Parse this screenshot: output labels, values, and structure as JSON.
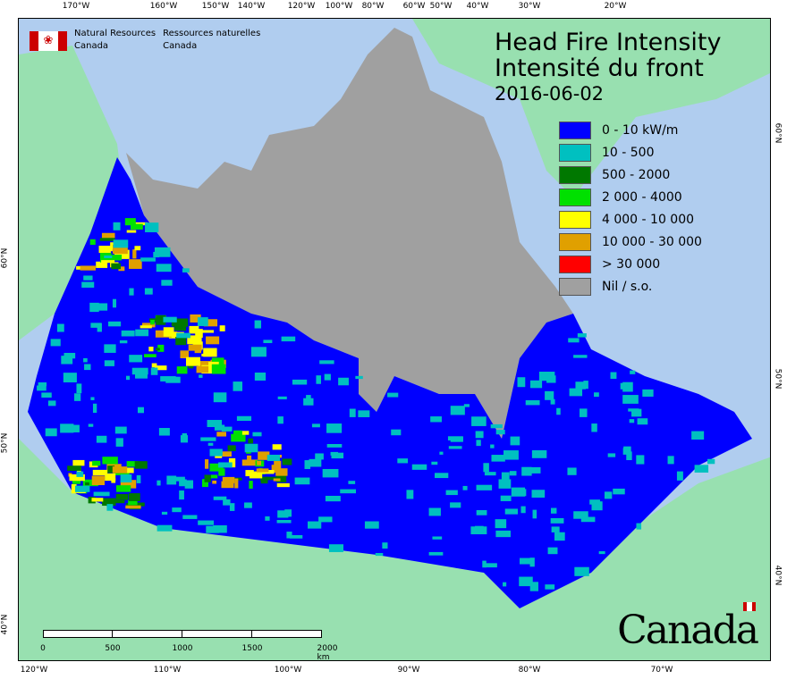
{
  "header": {
    "org_en": "Natural Resources",
    "org_en_2": "Canada",
    "org_fr": "Ressources naturelles",
    "org_fr_2": "Canada"
  },
  "title": {
    "line1": "Head Fire Intensity",
    "line2": "Intensité du front",
    "date": "2016-06-02"
  },
  "legend": [
    {
      "label": "0 - 10 kW/m",
      "color": "#0000ff"
    },
    {
      "label": "10 - 500",
      "color": "#00c0c0"
    },
    {
      "label": "500 - 2000",
      "color": "#007800"
    },
    {
      "label": "2 000 - 4000",
      "color": "#00e000"
    },
    {
      "label": "4 000 - 10 000",
      "color": "#ffff00"
    },
    {
      "label": "10 000 - 30 000",
      "color": "#e0a000"
    },
    {
      "label": "> 30 000",
      "color": "#ff0000"
    },
    {
      "label": "Nil / s.o.",
      "color": "#a0a0a0"
    }
  ],
  "top_ticks": [
    "170°W",
    "160°W",
    "150°W",
    "140°W",
    "120°W",
    "100°W",
    "80°W",
    "60°W",
    "50°W",
    "40°W",
    "30°W",
    "20°W"
  ],
  "bottom_ticks": [
    "120°W",
    "110°W",
    "100°W",
    "90°W",
    "80°W",
    "70°W"
  ],
  "left_ticks": [
    "60°N",
    "50°N",
    "40°N"
  ],
  "right_ticks": [
    "60°N",
    "50°N",
    "40°N"
  ],
  "scale": {
    "labels": [
      "0",
      "500",
      "1000",
      "1500",
      "2000 km"
    ]
  },
  "wordmark": "Canada",
  "colors": {
    "ocean": "#b0cdef",
    "land": "#98e0b0",
    "nodata": "#a0a0a0"
  }
}
